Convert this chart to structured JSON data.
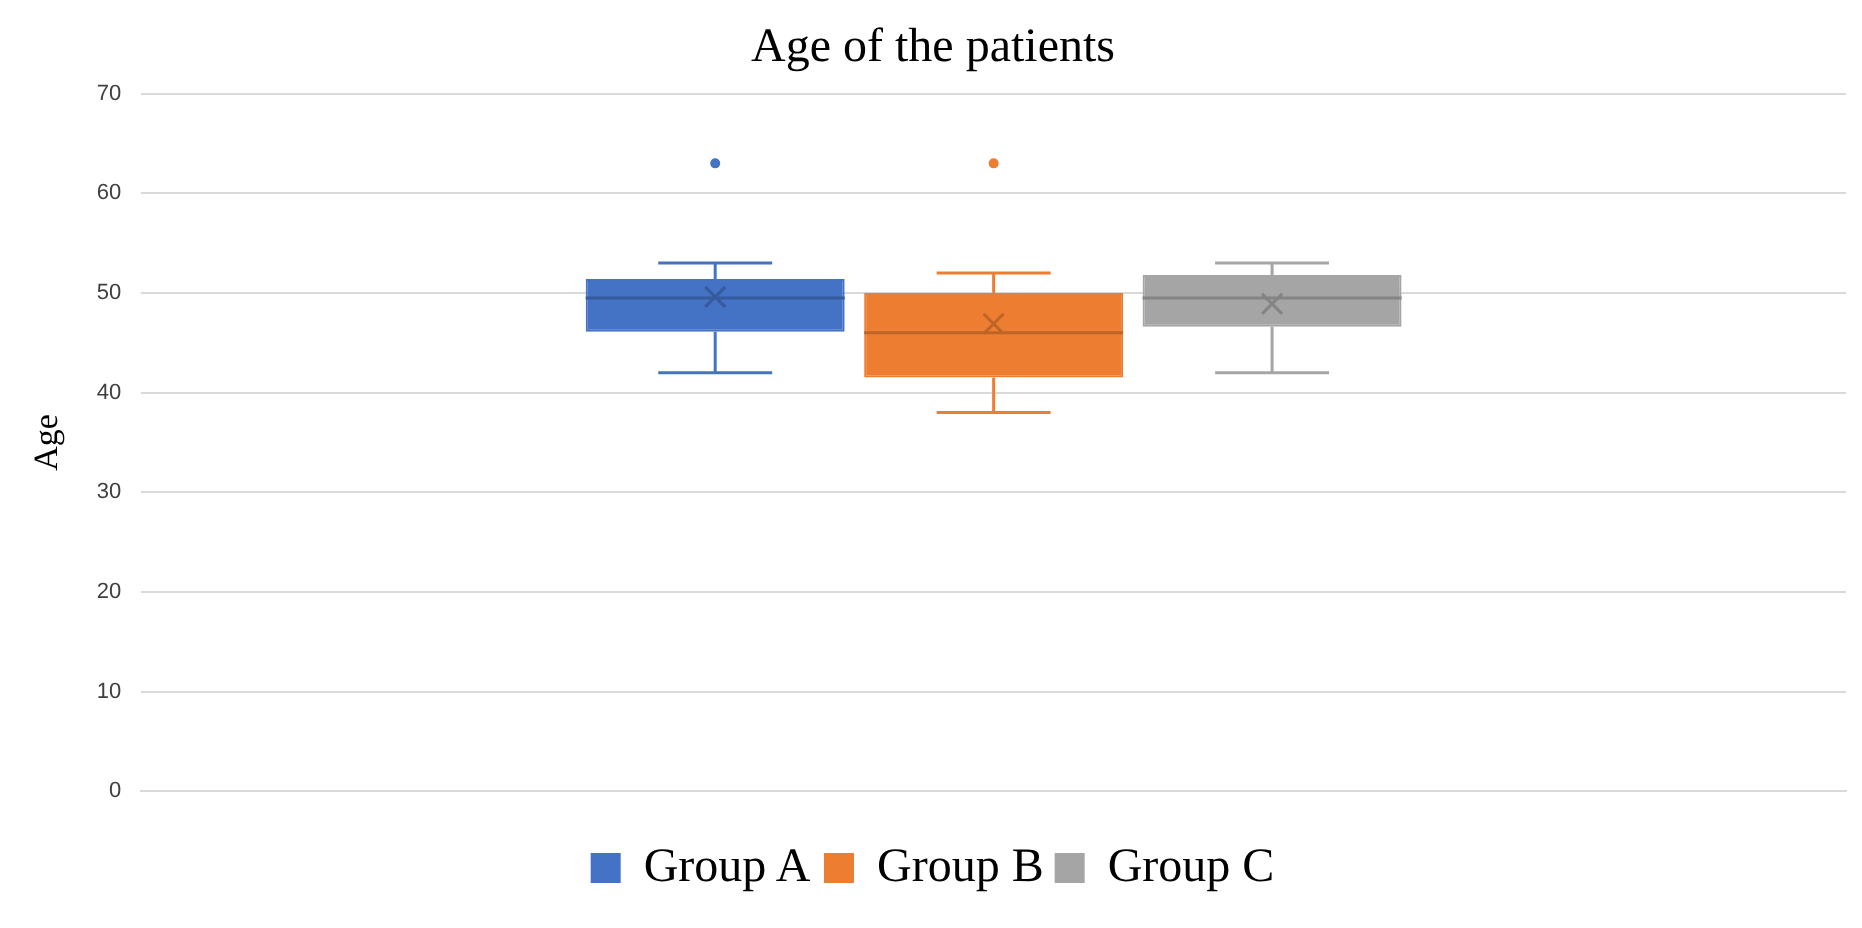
{
  "chart_data": {
    "type": "box",
    "title": "Age of the patients",
    "ylabel": "Age",
    "categories": [
      null
    ],
    "series": [
      {
        "name": "Group A",
        "color": "#4472c4",
        "boxes": [
          {
            "low": 42,
            "q1": 46.1,
            "median": 49.5,
            "q3": 51.4,
            "high": 53,
            "mean": 49.6,
            "outliers": [
              63
            ]
          }
        ]
      },
      {
        "name": "Group B",
        "color": "#ed7d31",
        "boxes": [
          {
            "low": 38,
            "q1": 41.5,
            "median": 46,
            "q3": 50,
            "high": 52,
            "mean": 46.9,
            "outliers": [
              63
            ]
          }
        ]
      },
      {
        "name": "Group C",
        "color": "#a5a5a5",
        "boxes": [
          {
            "low": 42,
            "q1": 46.6,
            "median": 49.5,
            "q3": 51.8,
            "high": 53,
            "mean": 48.9
          }
        ]
      }
    ],
    "ylim": [
      0,
      70
    ],
    "yticks": [
      0,
      10,
      20,
      30,
      40,
      50,
      60,
      70
    ],
    "grid": "y",
    "legend": "bottom"
  }
}
